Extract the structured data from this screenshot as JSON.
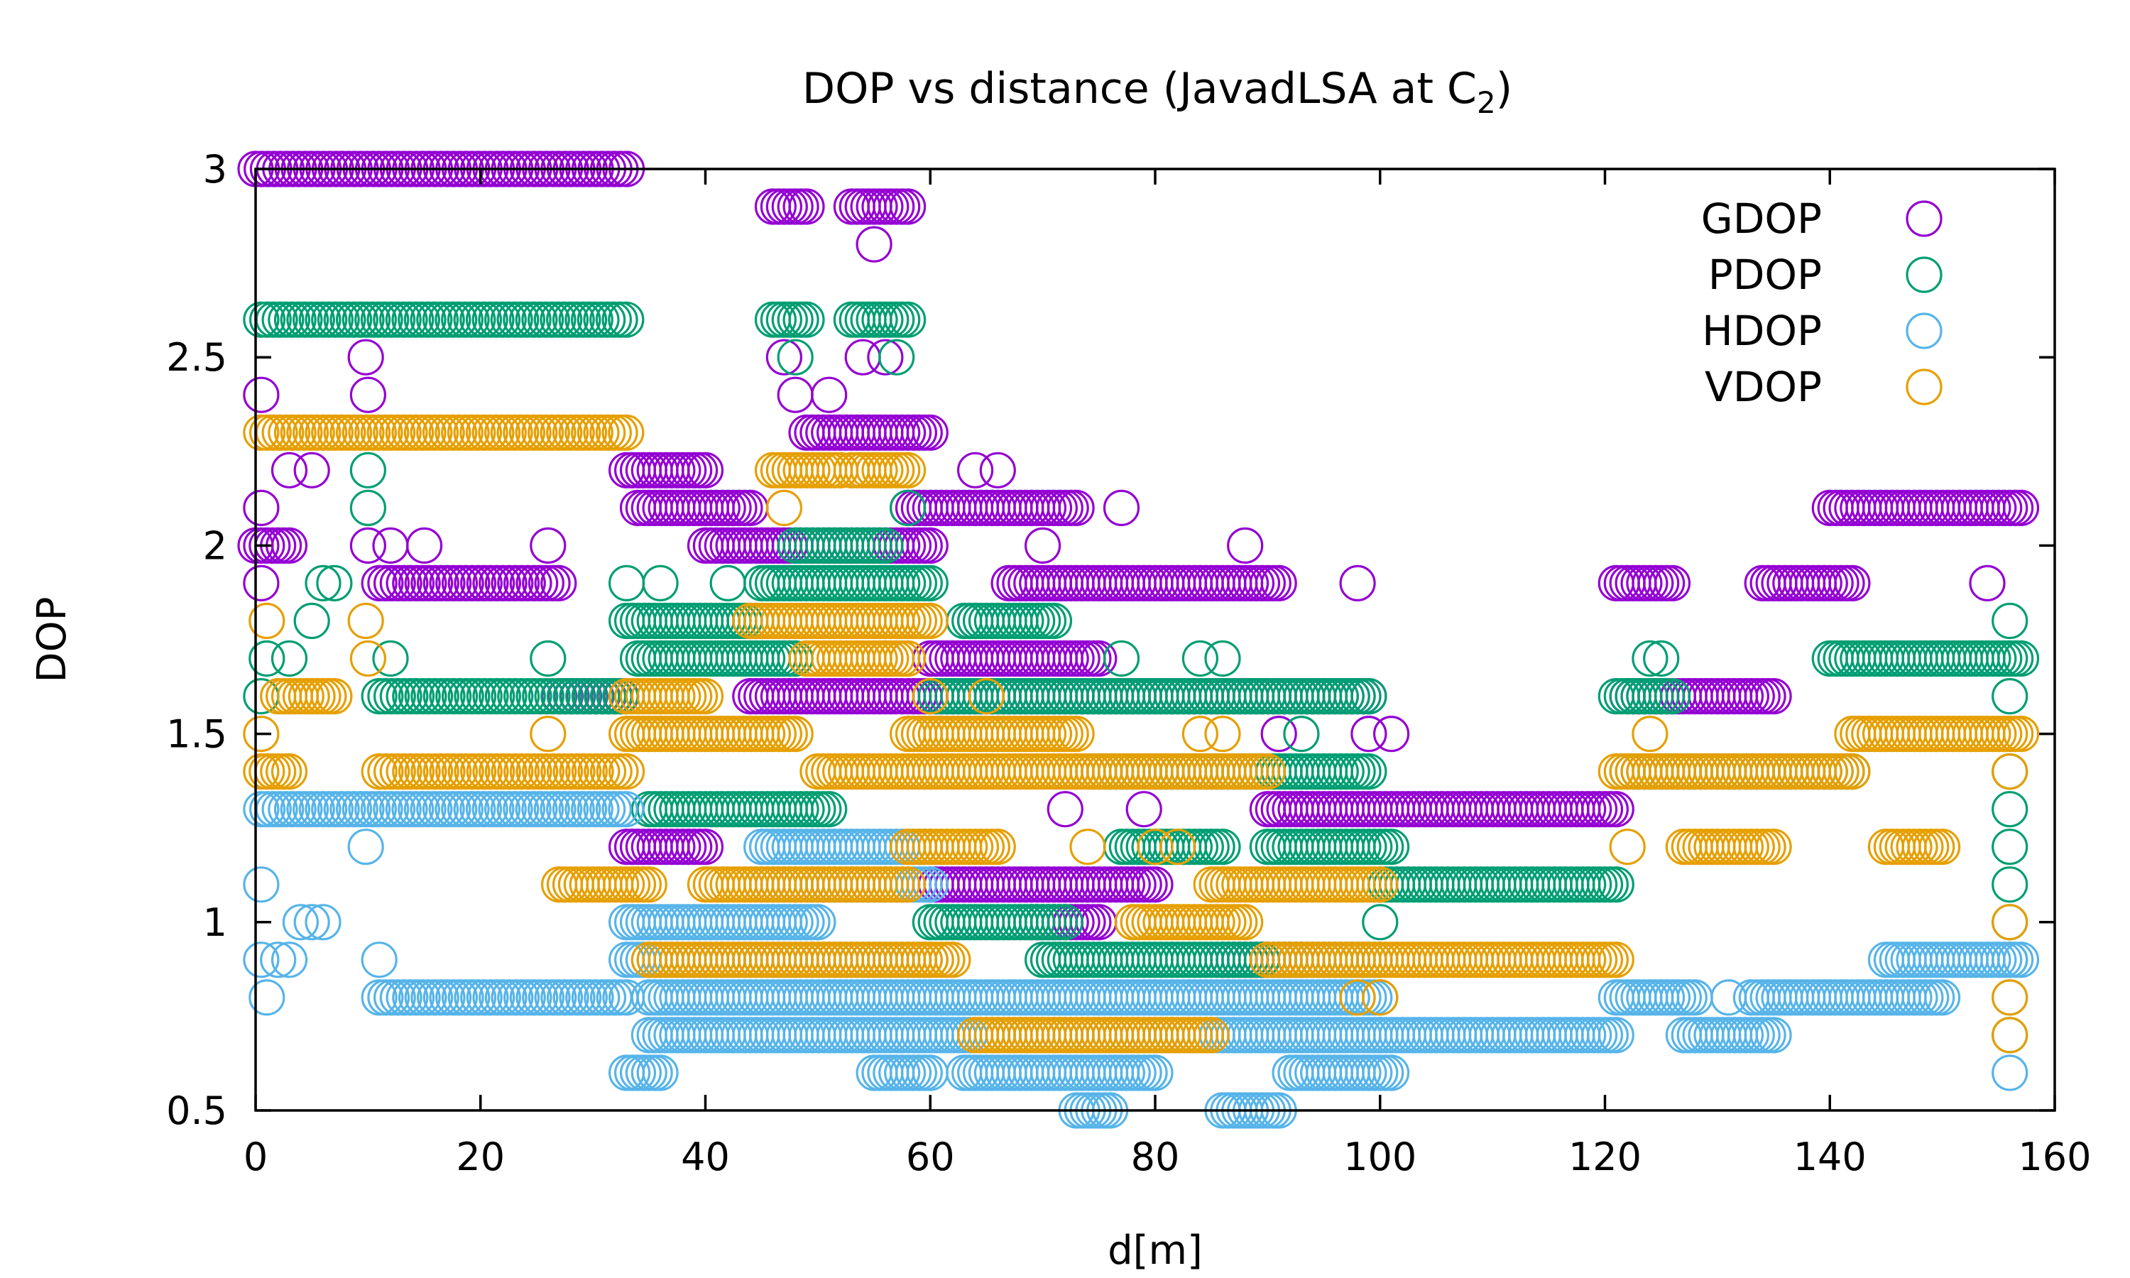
{
  "chart_data": {
    "type": "scatter",
    "title_main": "DOP vs distance (JavadLSA at C",
    "title_sub": "2",
    "title_tail": ")",
    "xlabel": "d[m]",
    "ylabel": "DOP",
    "xlim": [
      0,
      160
    ],
    "ylim": [
      0.5,
      3
    ],
    "xticks": [
      0,
      20,
      40,
      60,
      80,
      100,
      120,
      140,
      160
    ],
    "yticks": [
      0.5,
      1,
      1.5,
      2,
      2.5,
      3
    ],
    "xtick_labels": [
      "0",
      "20",
      "40",
      "60",
      "80",
      "100",
      "120",
      "140",
      "160"
    ],
    "ytick_labels": [
      "0.5",
      "1",
      "1.5",
      "2",
      "2.5",
      "3"
    ],
    "legend_position": "top-right",
    "marker": "open-circle",
    "series": [
      {
        "name": "GDOP",
        "color": "#9400d3",
        "segments": [
          {
            "x0": 0,
            "x1": 33,
            "y": 3.0,
            "step": 0.55
          },
          {
            "x0": 0,
            "x1": 3,
            "y": 2.0,
            "step": 0.5
          },
          {
            "x0": 11,
            "x1": 27,
            "y": 1.9,
            "step": 0.55
          },
          {
            "x0": 27,
            "x1": 33,
            "y": 1.6,
            "step": 0.55
          },
          {
            "x0": 33,
            "x1": 40,
            "y": 2.2,
            "step": 0.5
          },
          {
            "x0": 34,
            "x1": 44,
            "y": 2.1,
            "step": 0.5
          },
          {
            "x0": 33,
            "x1": 40,
            "y": 1.2,
            "step": 0.5
          },
          {
            "x0": 46,
            "x1": 49,
            "y": 2.9,
            "step": 0.5
          },
          {
            "x0": 53,
            "x1": 58,
            "y": 2.9,
            "step": 0.5
          },
          {
            "x0": 49,
            "x1": 60,
            "y": 2.3,
            "step": 0.5
          },
          {
            "x0": 40,
            "x1": 60,
            "y": 2.0,
            "step": 0.5
          },
          {
            "x0": 58,
            "x1": 73,
            "y": 2.1,
            "step": 0.5
          },
          {
            "x0": 67,
            "x1": 91,
            "y": 1.9,
            "step": 0.5
          },
          {
            "x0": 44,
            "x1": 99,
            "y": 1.6,
            "step": 0.5
          },
          {
            "x0": 60,
            "x1": 75,
            "y": 1.7,
            "step": 0.5
          },
          {
            "x0": 90,
            "x1": 121,
            "y": 1.3,
            "step": 0.5
          },
          {
            "x0": 60,
            "x1": 80,
            "y": 1.1,
            "step": 0.5
          },
          {
            "x0": 69,
            "x1": 75,
            "y": 1.0,
            "step": 0.5
          },
          {
            "x0": 86,
            "x1": 93,
            "y": 0.9,
            "step": 0.5
          },
          {
            "x0": 121,
            "x1": 126,
            "y": 1.9,
            "step": 0.5
          },
          {
            "x0": 122,
            "x1": 135,
            "y": 1.6,
            "step": 0.5
          },
          {
            "x0": 134,
            "x1": 142,
            "y": 1.9,
            "step": 0.5
          },
          {
            "x0": 140,
            "x1": 157,
            "y": 2.1,
            "step": 0.5
          }
        ],
        "points": [
          [
            0.5,
            2.4
          ],
          [
            9.8,
            2.5
          ],
          [
            10,
            2.4
          ],
          [
            0.5,
            2.1
          ],
          [
            0.5,
            1.9
          ],
          [
            3,
            2.2
          ],
          [
            5,
            2.2
          ],
          [
            10,
            2.0
          ],
          [
            12,
            2.0
          ],
          [
            15,
            2.0
          ],
          [
            26,
            2.0
          ],
          [
            47,
            2.5
          ],
          [
            48,
            2.4
          ],
          [
            51,
            2.4
          ],
          [
            54,
            2.5
          ],
          [
            55,
            2.8
          ],
          [
            56,
            2.5
          ],
          [
            64,
            2.2
          ],
          [
            66,
            2.2
          ],
          [
            70,
            2.0
          ],
          [
            77,
            2.1
          ],
          [
            88,
            2.0
          ],
          [
            98,
            1.9
          ],
          [
            91,
            1.5
          ],
          [
            99,
            1.5
          ],
          [
            101,
            1.5
          ],
          [
            72,
            1.3
          ],
          [
            79,
            1.3
          ],
          [
            93,
            1.3
          ],
          [
            95,
            1.2
          ],
          [
            56,
            1.7
          ],
          [
            64,
            1.8
          ],
          [
            154,
            1.9
          ],
          [
            150,
            1.7
          ],
          [
            146,
            1.7
          ]
        ]
      },
      {
        "name": "PDOP",
        "color": "#009e73",
        "segments": [
          {
            "x0": 0.5,
            "x1": 33,
            "y": 2.6,
            "step": 0.55
          },
          {
            "x0": 11,
            "x1": 33,
            "y": 1.6,
            "step": 0.55
          },
          {
            "x0": 33,
            "x1": 45,
            "y": 1.8,
            "step": 0.5
          },
          {
            "x0": 34,
            "x1": 48,
            "y": 1.7,
            "step": 0.5
          },
          {
            "x0": 35,
            "x1": 51,
            "y": 1.3,
            "step": 0.5
          },
          {
            "x0": 46,
            "x1": 49,
            "y": 2.6,
            "step": 0.5
          },
          {
            "x0": 53,
            "x1": 58,
            "y": 2.6,
            "step": 0.5
          },
          {
            "x0": 48,
            "x1": 56,
            "y": 2.0,
            "step": 0.5
          },
          {
            "x0": 45,
            "x1": 60,
            "y": 1.9,
            "step": 0.5
          },
          {
            "x0": 63,
            "x1": 71,
            "y": 1.8,
            "step": 0.5
          },
          {
            "x0": 60,
            "x1": 99,
            "y": 1.6,
            "step": 0.5
          },
          {
            "x0": 74,
            "x1": 99,
            "y": 1.4,
            "step": 0.5
          },
          {
            "x0": 77,
            "x1": 86,
            "y": 1.2,
            "step": 0.5
          },
          {
            "x0": 90,
            "x1": 101,
            "y": 1.2,
            "step": 0.5
          },
          {
            "x0": 100,
            "x1": 121,
            "y": 1.1,
            "step": 0.5
          },
          {
            "x0": 60,
            "x1": 72,
            "y": 1.0,
            "step": 0.5
          },
          {
            "x0": 70,
            "x1": 100,
            "y": 0.9,
            "step": 0.5
          },
          {
            "x0": 121,
            "x1": 126,
            "y": 1.6,
            "step": 0.5
          },
          {
            "x0": 122,
            "x1": 142,
            "y": 1.4,
            "step": 0.5
          },
          {
            "x0": 140,
            "x1": 157,
            "y": 1.7,
            "step": 0.5
          }
        ],
        "points": [
          [
            0.5,
            1.6
          ],
          [
            1,
            1.7
          ],
          [
            3,
            1.7
          ],
          [
            5,
            1.8
          ],
          [
            6,
            1.9
          ],
          [
            7,
            1.9
          ],
          [
            10,
            2.2
          ],
          [
            10,
            2.1
          ],
          [
            12,
            1.7
          ],
          [
            26,
            1.7
          ],
          [
            33,
            1.9
          ],
          [
            36,
            1.9
          ],
          [
            42,
            1.9
          ],
          [
            48,
            2.5
          ],
          [
            57,
            2.5
          ],
          [
            58,
            2.1
          ],
          [
            68,
            1.8
          ],
          [
            77,
            1.7
          ],
          [
            84,
            1.7
          ],
          [
            86,
            1.7
          ],
          [
            93,
            1.5
          ],
          [
            100,
            1.0
          ],
          [
            124,
            1.7
          ],
          [
            125,
            1.7
          ],
          [
            156,
            1.8
          ],
          [
            156,
            1.6
          ],
          [
            156,
            1.4
          ],
          [
            156,
            1.3
          ],
          [
            156,
            1.2
          ],
          [
            156,
            1.1
          ],
          [
            156,
            1.0
          ],
          [
            156,
            0.9
          ],
          [
            156,
            0.7
          ]
        ]
      },
      {
        "name": "HDOP",
        "color": "#56b4e9",
        "segments": [
          {
            "x0": 0.5,
            "x1": 33,
            "y": 1.3,
            "step": 0.55
          },
          {
            "x0": 11,
            "x1": 33,
            "y": 0.8,
            "step": 0.55
          },
          {
            "x0": 33,
            "x1": 50,
            "y": 1.0,
            "step": 0.5
          },
          {
            "x0": 33,
            "x1": 60,
            "y": 0.9,
            "step": 0.5
          },
          {
            "x0": 35,
            "x1": 100,
            "y": 0.8,
            "step": 0.5
          },
          {
            "x0": 35,
            "x1": 100,
            "y": 0.7,
            "step": 0.5
          },
          {
            "x0": 45,
            "x1": 60,
            "y": 1.2,
            "step": 0.5
          },
          {
            "x0": 45,
            "x1": 60,
            "y": 1.1,
            "step": 0.5
          },
          {
            "x0": 33,
            "x1": 36,
            "y": 0.6,
            "step": 0.5
          },
          {
            "x0": 55,
            "x1": 60,
            "y": 0.6,
            "step": 0.5
          },
          {
            "x0": 63,
            "x1": 80,
            "y": 0.6,
            "step": 0.5
          },
          {
            "x0": 92,
            "x1": 101,
            "y": 0.6,
            "step": 0.5
          },
          {
            "x0": 73,
            "x1": 76,
            "y": 0.5,
            "step": 0.5
          },
          {
            "x0": 86,
            "x1": 91,
            "y": 0.5,
            "step": 0.5
          },
          {
            "x0": 100,
            "x1": 121,
            "y": 0.7,
            "step": 0.5
          },
          {
            "x0": 121,
            "x1": 128,
            "y": 0.8,
            "step": 0.5
          },
          {
            "x0": 127,
            "x1": 135,
            "y": 0.7,
            "step": 0.5
          },
          {
            "x0": 133,
            "x1": 150,
            "y": 0.8,
            "step": 0.5
          },
          {
            "x0": 145,
            "x1": 157,
            "y": 0.9,
            "step": 0.5
          }
        ],
        "points": [
          [
            0.5,
            0.9
          ],
          [
            0.5,
            1.1
          ],
          [
            1,
            0.8
          ],
          [
            2,
            0.9
          ],
          [
            3,
            0.9
          ],
          [
            4,
            1.0
          ],
          [
            5,
            1.0
          ],
          [
            6,
            1.0
          ],
          [
            9.8,
            1.2
          ],
          [
            11,
            0.9
          ],
          [
            131,
            0.8
          ],
          [
            156,
            0.8
          ],
          [
            156,
            0.6
          ]
        ]
      },
      {
        "name": "VDOP",
        "color": "#e69f00",
        "segments": [
          {
            "x0": 0.5,
            "x1": 33,
            "y": 2.3,
            "step": 0.55
          },
          {
            "x0": 11,
            "x1": 33,
            "y": 1.4,
            "step": 0.55
          },
          {
            "x0": 0.5,
            "x1": 3,
            "y": 1.4,
            "step": 0.5
          },
          {
            "x0": 2,
            "x1": 7,
            "y": 1.6,
            "step": 0.5
          },
          {
            "x0": 27,
            "x1": 35,
            "y": 1.1,
            "step": 0.5
          },
          {
            "x0": 33,
            "x1": 48,
            "y": 1.5,
            "step": 0.5
          },
          {
            "x0": 33,
            "x1": 40,
            "y": 1.6,
            "step": 0.5
          },
          {
            "x0": 40,
            "x1": 58,
            "y": 1.1,
            "step": 0.5
          },
          {
            "x0": 35,
            "x1": 62,
            "y": 0.9,
            "step": 0.5
          },
          {
            "x0": 46,
            "x1": 52,
            "y": 2.2,
            "step": 0.5
          },
          {
            "x0": 53,
            "x1": 58,
            "y": 2.2,
            "step": 0.5
          },
          {
            "x0": 44,
            "x1": 60,
            "y": 1.8,
            "step": 0.5
          },
          {
            "x0": 49,
            "x1": 58,
            "y": 1.7,
            "step": 0.5
          },
          {
            "x0": 50,
            "x1": 73,
            "y": 1.4,
            "step": 0.5
          },
          {
            "x0": 58,
            "x1": 73,
            "y": 1.5,
            "step": 0.5
          },
          {
            "x0": 58,
            "x1": 66,
            "y": 1.2,
            "step": 0.5
          },
          {
            "x0": 64,
            "x1": 85,
            "y": 0.7,
            "step": 0.5
          },
          {
            "x0": 73,
            "x1": 90,
            "y": 1.4,
            "step": 0.5
          },
          {
            "x0": 78,
            "x1": 88,
            "y": 1.0,
            "step": 0.5
          },
          {
            "x0": 85,
            "x1": 100,
            "y": 1.1,
            "step": 0.5
          },
          {
            "x0": 90,
            "x1": 121,
            "y": 0.9,
            "step": 0.5
          },
          {
            "x0": 121,
            "x1": 142,
            "y": 1.4,
            "step": 0.5
          },
          {
            "x0": 127,
            "x1": 135,
            "y": 1.2,
            "step": 0.5
          },
          {
            "x0": 142,
            "x1": 157,
            "y": 1.5,
            "step": 0.5
          },
          {
            "x0": 145,
            "x1": 150,
            "y": 1.2,
            "step": 0.5
          }
        ],
        "points": [
          [
            0.5,
            1.5
          ],
          [
            1,
            1.8
          ],
          [
            9.8,
            1.8
          ],
          [
            10,
            1.7
          ],
          [
            26,
            1.5
          ],
          [
            36,
            1.6
          ],
          [
            47,
            2.1
          ],
          [
            57,
            1.8
          ],
          [
            60,
            1.6
          ],
          [
            65,
            1.6
          ],
          [
            74,
            1.2
          ],
          [
            80,
            1.2
          ],
          [
            82,
            1.2
          ],
          [
            84,
            1.5
          ],
          [
            86,
            1.5
          ],
          [
            98,
            0.8
          ],
          [
            100,
            0.8
          ],
          [
            122,
            1.2
          ],
          [
            124,
            1.5
          ],
          [
            156,
            1.4
          ],
          [
            156,
            1.0
          ],
          [
            156,
            0.8
          ],
          [
            156,
            0.7
          ]
        ]
      }
    ]
  }
}
